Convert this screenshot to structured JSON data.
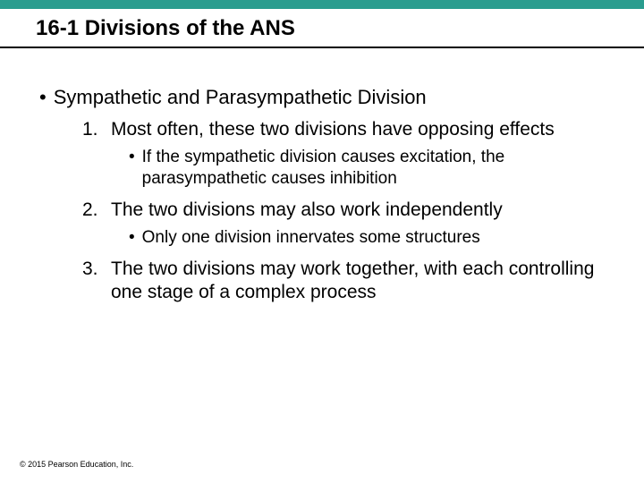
{
  "colors": {
    "top_bar": "#2a9d8f",
    "background": "#ffffff",
    "text": "#000000",
    "underline": "#000000"
  },
  "title": "16-1 Divisions of the ANS",
  "main_bullet": "Sympathetic and Parasympathetic Division",
  "items": [
    {
      "num": "1.",
      "text": "Most often, these two divisions have opposing effects",
      "sub": "If the sympathetic division causes excitation, the parasympathetic causes inhibition"
    },
    {
      "num": "2.",
      "text": "The two divisions may also work independently",
      "sub": "Only one division innervates some structures"
    },
    {
      "num": "3.",
      "text": "The two divisions may work together, with each controlling one stage of a complex process",
      "sub": null
    }
  ],
  "copyright": "© 2015 Pearson Education, Inc."
}
